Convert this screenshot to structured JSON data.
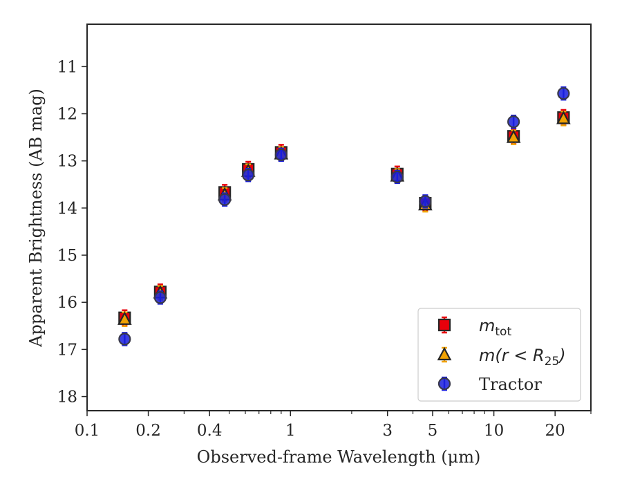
{
  "chart_data": {
    "type": "scatter",
    "xlabel": "Observed-frame Wavelength (μm)",
    "ylabel": "Apparent Brightness (AB mag)",
    "x_scale": "log",
    "xlim": [
      0.1,
      30
    ],
    "ylim": [
      18.3,
      10.1
    ],
    "y_inverted": true,
    "grid": false,
    "legend_position": "lower-right",
    "x_ticks": [
      {
        "value": 0.1,
        "label": "0.1"
      },
      {
        "value": 0.2,
        "label": "0.2"
      },
      {
        "value": 0.4,
        "label": "0.4"
      },
      {
        "value": 1,
        "label": "1"
      },
      {
        "value": 3,
        "label": "3"
      },
      {
        "value": 5,
        "label": "5"
      },
      {
        "value": 10,
        "label": "10"
      },
      {
        "value": 20,
        "label": "20"
      }
    ],
    "y_ticks": [
      {
        "value": 11,
        "label": "11"
      },
      {
        "value": 12,
        "label": "12"
      },
      {
        "value": 13,
        "label": "13"
      },
      {
        "value": 14,
        "label": "14"
      },
      {
        "value": 15,
        "label": "15"
      },
      {
        "value": 16,
        "label": "16"
      },
      {
        "value": 17,
        "label": "17"
      },
      {
        "value": 18,
        "label": "18"
      }
    ],
    "series": [
      {
        "name": "m_tot",
        "legend_main": "m",
        "legend_sub": "tot",
        "marker": "square",
        "color": "#e8000b",
        "points": [
          {
            "x": 0.153,
            "y": 16.33
          },
          {
            "x": 0.229,
            "y": 15.78
          },
          {
            "x": 0.475,
            "y": 13.67
          },
          {
            "x": 0.62,
            "y": 13.18
          },
          {
            "x": 0.9,
            "y": 12.82
          },
          {
            "x": 3.35,
            "y": 13.28
          },
          {
            "x": 4.6,
            "y": 13.9
          },
          {
            "x": 12.5,
            "y": 12.48
          },
          {
            "x": 22.0,
            "y": 12.08
          }
        ]
      },
      {
        "name": "m(r < R25)",
        "legend_main": "m(r < R",
        "legend_sub": "25",
        "legend_tail": ")",
        "marker": "triangle",
        "color": "#f1a202",
        "points": [
          {
            "x": 0.153,
            "y": 16.36
          },
          {
            "x": 0.229,
            "y": 15.8
          },
          {
            "x": 0.475,
            "y": 13.72
          },
          {
            "x": 0.62,
            "y": 13.22
          },
          {
            "x": 0.9,
            "y": 12.85
          },
          {
            "x": 3.35,
            "y": 13.32
          },
          {
            "x": 4.6,
            "y": 13.93
          },
          {
            "x": 12.5,
            "y": 12.5
          },
          {
            "x": 22.0,
            "y": 12.1
          }
        ]
      },
      {
        "name": "Tractor",
        "legend_main": "Tractor",
        "marker": "circle",
        "color": "#1a1fdd",
        "points": [
          {
            "x": 0.153,
            "y": 16.78
          },
          {
            "x": 0.229,
            "y": 15.9
          },
          {
            "x": 0.475,
            "y": 13.82
          },
          {
            "x": 0.62,
            "y": 13.3
          },
          {
            "x": 0.9,
            "y": 12.87
          },
          {
            "x": 3.35,
            "y": 13.34
          },
          {
            "x": 4.6,
            "y": 13.86
          },
          {
            "x": 12.5,
            "y": 12.17
          },
          {
            "x": 22.0,
            "y": 11.57
          }
        ]
      }
    ]
  }
}
